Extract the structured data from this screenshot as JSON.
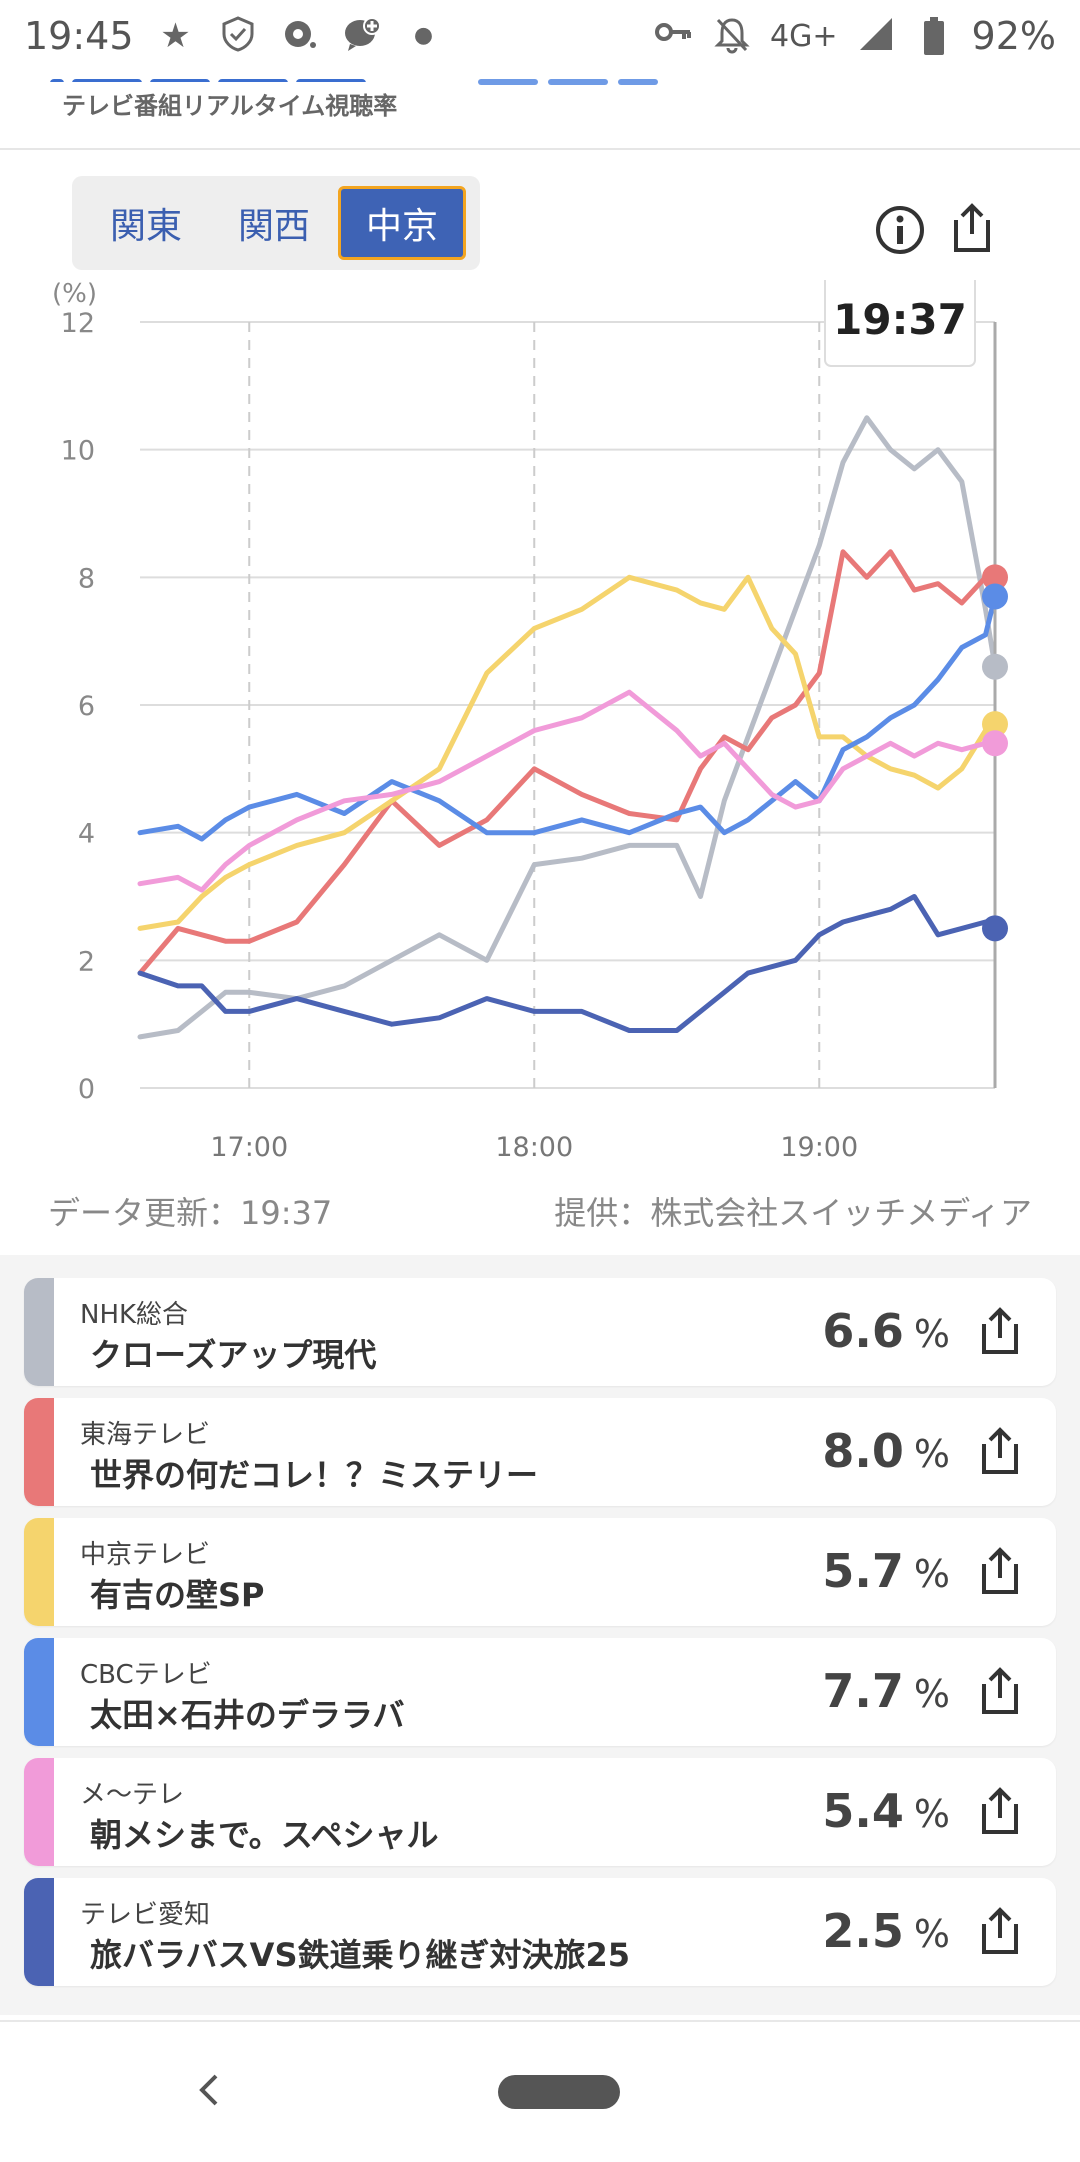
{
  "status_bar": {
    "time": "19:45",
    "network": "4G+",
    "battery": "92%"
  },
  "header": {
    "subtitle": "テレビ番組リアルタイム視聴率"
  },
  "regions": {
    "tabs": [
      "関東",
      "関西",
      "中京"
    ],
    "active": "中京"
  },
  "chart_data": {
    "type": "line",
    "ylabel": "(%)",
    "ylim": [
      0,
      12
    ],
    "yticks": [
      "0",
      "2",
      "4",
      "6",
      "8",
      "10",
      "12"
    ],
    "xticks": [
      "17:00",
      "18:00",
      "19:00"
    ],
    "x_range": [
      "16:37",
      "19:37"
    ],
    "cursor_label": "19:37",
    "series": [
      {
        "name": "NHK総合",
        "color": "#b7bcc6",
        "x": [
          "16:37",
          "16:45",
          "16:50",
          "16:55",
          "17:00",
          "17:10",
          "17:20",
          "17:30",
          "17:40",
          "17:50",
          "18:00",
          "18:10",
          "18:20",
          "18:30",
          "18:35",
          "18:40",
          "18:45",
          "18:50",
          "18:55",
          "19:00",
          "19:05",
          "19:10",
          "19:15",
          "19:20",
          "19:25",
          "19:30",
          "19:35",
          "19:37"
        ],
        "values": [
          0.8,
          0.9,
          1.2,
          1.5,
          1.5,
          1.4,
          1.6,
          2.0,
          2.4,
          2.0,
          3.5,
          3.6,
          3.8,
          3.8,
          3.0,
          4.5,
          5.5,
          6.5,
          7.5,
          8.5,
          9.8,
          10.5,
          10.0,
          9.7,
          10.0,
          9.5,
          7.5,
          6.6
        ]
      },
      {
        "name": "東海テレビ",
        "color": "#e87878",
        "x": [
          "16:37",
          "16:45",
          "16:50",
          "16:55",
          "17:00",
          "17:10",
          "17:20",
          "17:30",
          "17:40",
          "17:50",
          "18:00",
          "18:10",
          "18:20",
          "18:30",
          "18:35",
          "18:40",
          "18:45",
          "18:50",
          "18:55",
          "19:00",
          "19:05",
          "19:10",
          "19:15",
          "19:20",
          "19:25",
          "19:30",
          "19:35",
          "19:37"
        ],
        "values": [
          1.8,
          2.5,
          2.4,
          2.3,
          2.3,
          2.6,
          3.5,
          4.5,
          3.8,
          4.2,
          5.0,
          4.6,
          4.3,
          4.2,
          5.0,
          5.5,
          5.3,
          5.8,
          6.0,
          6.5,
          8.4,
          8.0,
          8.4,
          7.8,
          7.9,
          7.6,
          8.0,
          8.0
        ]
      },
      {
        "name": "中京テレビ",
        "color": "#f5d46d",
        "x": [
          "16:37",
          "16:45",
          "16:50",
          "16:55",
          "17:00",
          "17:10",
          "17:20",
          "17:30",
          "17:40",
          "17:50",
          "18:00",
          "18:10",
          "18:20",
          "18:30",
          "18:35",
          "18:40",
          "18:45",
          "18:50",
          "18:55",
          "19:00",
          "19:05",
          "19:10",
          "19:15",
          "19:20",
          "19:25",
          "19:30",
          "19:35",
          "19:37"
        ],
        "values": [
          2.5,
          2.6,
          3.0,
          3.3,
          3.5,
          3.8,
          4.0,
          4.5,
          5.0,
          6.5,
          7.2,
          7.5,
          8.0,
          7.8,
          7.6,
          7.5,
          8.0,
          7.2,
          6.8,
          5.5,
          5.5,
          5.2,
          5.0,
          4.9,
          4.7,
          5.0,
          5.6,
          5.7
        ]
      },
      {
        "name": "CBCテレビ",
        "color": "#5b8ce6",
        "x": [
          "16:37",
          "16:45",
          "16:50",
          "16:55",
          "17:00",
          "17:10",
          "17:20",
          "17:30",
          "17:40",
          "17:50",
          "18:00",
          "18:10",
          "18:20",
          "18:30",
          "18:35",
          "18:40",
          "18:45",
          "18:50",
          "18:55",
          "19:00",
          "19:05",
          "19:10",
          "19:15",
          "19:20",
          "19:25",
          "19:30",
          "19:35",
          "19:37"
        ],
        "values": [
          4.0,
          4.1,
          3.9,
          4.2,
          4.4,
          4.6,
          4.3,
          4.8,
          4.5,
          4.0,
          4.0,
          4.2,
          4.0,
          4.3,
          4.4,
          4.0,
          4.2,
          4.5,
          4.8,
          4.5,
          5.3,
          5.5,
          5.8,
          6.0,
          6.4,
          6.9,
          7.1,
          7.7
        ]
      },
      {
        "name": "メ〜テレ",
        "color": "#f19bd9",
        "x": [
          "16:37",
          "16:45",
          "16:50",
          "16:55",
          "17:00",
          "17:10",
          "17:20",
          "17:30",
          "17:40",
          "17:50",
          "18:00",
          "18:10",
          "18:20",
          "18:30",
          "18:35",
          "18:40",
          "18:45",
          "18:50",
          "18:55",
          "19:00",
          "19:05",
          "19:10",
          "19:15",
          "19:20",
          "19:25",
          "19:30",
          "19:35",
          "19:37"
        ],
        "values": [
          3.2,
          3.3,
          3.1,
          3.5,
          3.8,
          4.2,
          4.5,
          4.6,
          4.8,
          5.2,
          5.6,
          5.8,
          6.2,
          5.6,
          5.2,
          5.4,
          5.0,
          4.6,
          4.4,
          4.5,
          5.0,
          5.2,
          5.4,
          5.2,
          5.4,
          5.3,
          5.4,
          5.4
        ]
      },
      {
        "name": "テレビ愛知",
        "color": "#4b63b3",
        "x": [
          "16:37",
          "16:45",
          "16:50",
          "16:55",
          "17:00",
          "17:10",
          "17:20",
          "17:30",
          "17:40",
          "17:50",
          "18:00",
          "18:10",
          "18:20",
          "18:30",
          "18:35",
          "18:40",
          "18:45",
          "18:50",
          "18:55",
          "19:00",
          "19:05",
          "19:10",
          "19:15",
          "19:20",
          "19:25",
          "19:30",
          "19:35",
          "19:37"
        ],
        "values": [
          1.8,
          1.6,
          1.6,
          1.2,
          1.2,
          1.4,
          1.2,
          1.0,
          1.1,
          1.4,
          1.2,
          1.2,
          0.9,
          0.9,
          1.2,
          1.5,
          1.8,
          1.9,
          2.0,
          2.4,
          2.6,
          2.7,
          2.8,
          3.0,
          2.4,
          2.5,
          2.6,
          2.5
        ]
      }
    ]
  },
  "footer": {
    "updated": "データ更新：19:37",
    "provider": "提供：株式会社スイッチメディア"
  },
  "channels": [
    {
      "station": "NHK総合",
      "program": "クローズアップ現代",
      "rate": "6.6",
      "unit": "%",
      "color": "#b7bcc6"
    },
    {
      "station": "東海テレビ",
      "program": "世界の何だコレ！？ミステリー",
      "rate": "8.0",
      "unit": "%",
      "color": "#e87878"
    },
    {
      "station": "中京テレビ",
      "program": "有吉の壁SP",
      "rate": "5.7",
      "unit": "%",
      "color": "#f5d46d"
    },
    {
      "station": "CBCテレビ",
      "program": "太田×石井のデララバ",
      "rate": "7.7",
      "unit": "%",
      "color": "#5b8ce6"
    },
    {
      "station": "メ〜テレ",
      "program": "朝メシまで。スペシャル",
      "rate": "5.4",
      "unit": "%",
      "color": "#f19bd9"
    },
    {
      "station": "テレビ愛知",
      "program": "旅バラバスVS鉄道乗り継ぎ対決旅25",
      "rate": "2.5",
      "unit": "%",
      "color": "#4b63b3"
    }
  ]
}
